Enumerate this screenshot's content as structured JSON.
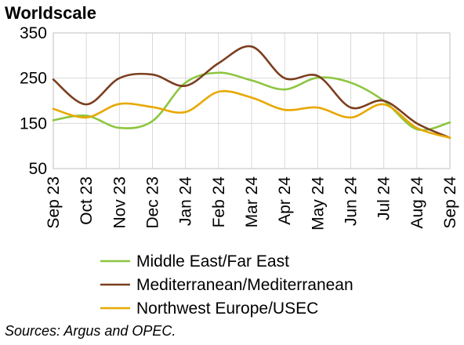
{
  "chart_data": {
    "type": "line",
    "ylabel": "Worldscale",
    "ylim": [
      50,
      350
    ],
    "yticks": [
      50,
      150,
      250,
      350
    ],
    "categories": [
      "Sep 23",
      "Oct 23",
      "Nov 23",
      "Dec 23",
      "Jan 24",
      "Feb 24",
      "Mar 24",
      "Apr 24",
      "May 24",
      "Jun 24",
      "Jul 24",
      "Aug 24",
      "Sep 24"
    ],
    "grid": true,
    "legend_position": "bottom",
    "series": [
      {
        "name": "Middle East/Far East",
        "color": "#8DC63F",
        "values": [
          157,
          167,
          140,
          155,
          240,
          262,
          245,
          225,
          251,
          240,
          200,
          137,
          152
        ]
      },
      {
        "name": "Mediterranean/Mediterranean",
        "color": "#7B3F1F",
        "values": [
          247,
          192,
          250,
          258,
          233,
          283,
          320,
          250,
          255,
          185,
          200,
          150,
          118
        ]
      },
      {
        "name": "Northwest Europe/USEC",
        "color": "#E8A800",
        "values": [
          182,
          163,
          193,
          186,
          175,
          220,
          207,
          180,
          185,
          163,
          192,
          140,
          118
        ]
      }
    ],
    "source": "Sources: Argus and OPEC."
  }
}
